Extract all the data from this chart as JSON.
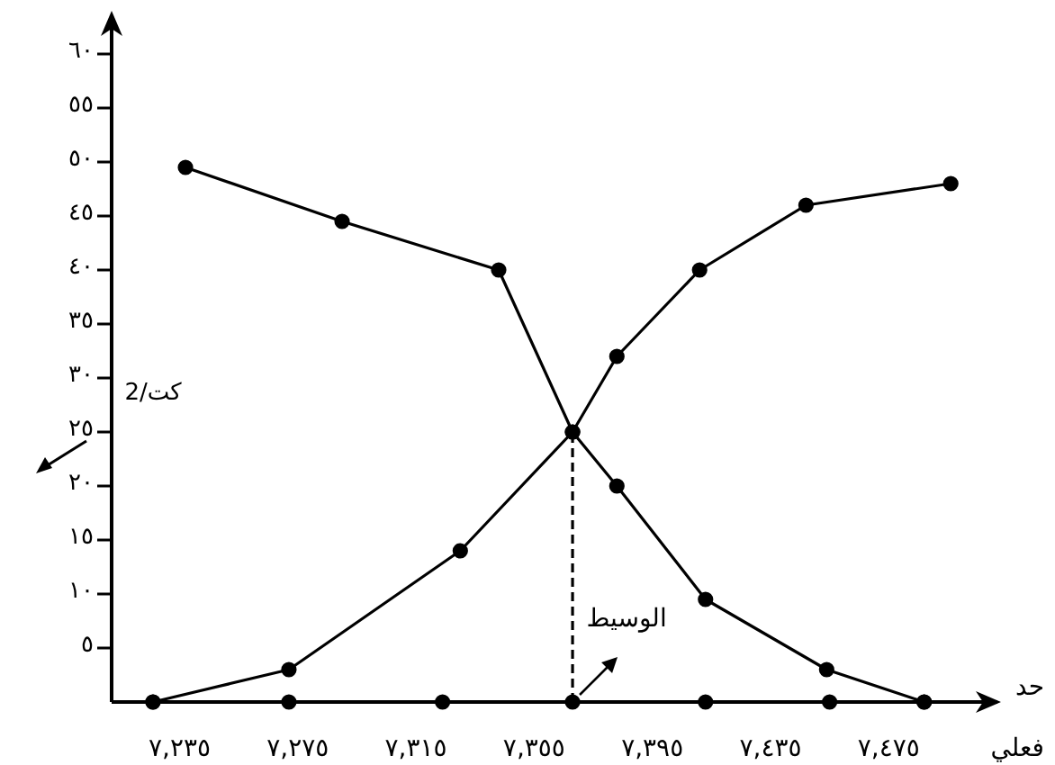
{
  "chart_data": {
    "type": "line",
    "xlabel": "حد فعلي",
    "xlim": [
      7212,
      7513
    ],
    "ylim": [
      0,
      63
    ],
    "xticks": [
      {
        "value": 7235,
        "label": "٧,٢٣٥"
      },
      {
        "value": 7275,
        "label": "٧,٢٧٥"
      },
      {
        "value": 7315,
        "label": "٧,٣١٥"
      },
      {
        "value": 7355,
        "label": "٧,٣٥٥"
      },
      {
        "value": 7395,
        "label": "٧,٣٩٥"
      },
      {
        "value": 7435,
        "label": "٧,٤٣٥"
      },
      {
        "value": 7475,
        "label": "٧,٤٧٥"
      }
    ],
    "yticks": [
      {
        "value": 5,
        "label": "٥"
      },
      {
        "value": 10,
        "label": "١٠"
      },
      {
        "value": 15,
        "label": "١٥"
      },
      {
        "value": 20,
        "label": "٢٠"
      },
      {
        "value": 25,
        "label": "٢٥"
      },
      {
        "value": 30,
        "label": "٣٠"
      },
      {
        "value": 35,
        "label": "٣٥"
      },
      {
        "value": 40,
        "label": "٤٠"
      },
      {
        "value": 45,
        "label": "٤٥"
      },
      {
        "value": 50,
        "label": "٥٠"
      },
      {
        "value": 55,
        "label": "٥٥"
      },
      {
        "value": 60,
        "label": "٦٠"
      }
    ],
    "grid": false,
    "marker": "circle",
    "series": [
      {
        "color": "#000000",
        "x": [
          7226,
          7272,
          7330,
          7368,
          7383,
          7411,
          7447,
          7496
        ],
        "values": [
          0,
          3,
          14,
          25,
          32,
          40,
          46,
          48
        ]
      },
      {
        "color": "#000000",
        "x": [
          7237,
          7290,
          7343,
          7368,
          7383,
          7413,
          7454,
          7487
        ],
        "values": [
          49.5,
          44.5,
          40,
          25,
          20,
          9.5,
          3,
          0
        ]
      },
      {
        "type": "scatter",
        "color": "#000000",
        "x": [
          7226,
          7272,
          7324,
          7368,
          7413,
          7455,
          7487
        ],
        "values": [
          0,
          0,
          0,
          0,
          0,
          0,
          0
        ]
      },
      {
        "type": "line",
        "color": "#000000",
        "line_style": "dashed",
        "marker": "none",
        "x": [
          7368,
          7368
        ],
        "values": [
          0,
          25
        ]
      }
    ],
    "annotations": [
      {
        "text": "الوسيط",
        "x": 7368,
        "y": 0
      },
      "كت/2"
    ]
  }
}
